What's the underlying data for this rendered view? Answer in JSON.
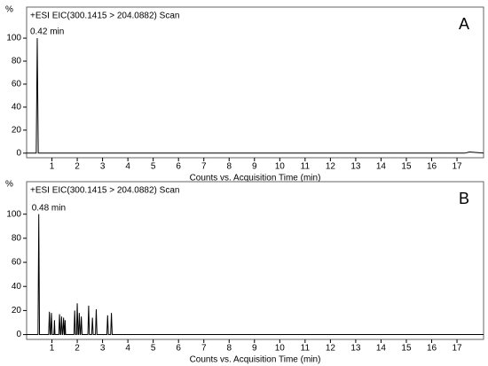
{
  "chart_data": [
    {
      "type": "line",
      "y_label": "%",
      "title": "+ESI EIC(300.1415 > 204.0882) Scan",
      "annotation": "A",
      "peak_label": "0.42 min",
      "x_label": "Counts vs. Acquisition Time (min)",
      "color": "#000000",
      "x": [
        0,
        0.38,
        0.42,
        0.46,
        17.3,
        17.5,
        18.05
      ],
      "values": [
        0,
        0,
        100,
        0,
        0,
        1,
        0
      ],
      "xlim": [
        0,
        18.05
      ],
      "ylim": [
        -4,
        127
      ],
      "xticks": [
        1,
        2,
        3,
        4,
        5,
        6,
        7,
        8,
        9,
        10,
        11,
        12,
        13,
        14,
        15,
        16,
        17
      ],
      "yticks": [
        0,
        20,
        40,
        60,
        80,
        100
      ]
    },
    {
      "type": "line",
      "y_label": "%",
      "title": "+ESI EIC(300.1415 > 204.0882) Scan",
      "annotation": "B",
      "peak_label": "0.48 min",
      "x_label": "Counts vs. Acquisition Time (min)",
      "color": "#000000",
      "x": [
        0,
        0.45,
        0.48,
        0.51,
        0.87,
        0.9,
        0.93,
        0.95,
        0.98,
        1.01,
        1.08,
        1.1,
        1.12,
        1.27,
        1.3,
        1.33,
        1.35,
        1.38,
        1.41,
        1.43,
        1.46,
        1.49,
        1.5,
        1.52,
        1.54,
        1.87,
        1.9,
        1.93,
        1.97,
        2.0,
        2.03,
        2.05,
        2.08,
        2.11,
        2.13,
        2.16,
        2.19,
        2.42,
        2.45,
        2.48,
        2.57,
        2.6,
        2.63,
        2.72,
        2.75,
        2.78,
        3.17,
        3.2,
        3.23,
        3.32,
        3.35,
        3.38,
        18.05
      ],
      "values": [
        0,
        0,
        100,
        0,
        0,
        19,
        0,
        0,
        18,
        0,
        0,
        12,
        0,
        0,
        17,
        0,
        0,
        15,
        0,
        0,
        14,
        0,
        0,
        12,
        0,
        0,
        20,
        0,
        0,
        26,
        0,
        0,
        18,
        0,
        0,
        15,
        0,
        0,
        24,
        0,
        0,
        14,
        0,
        0,
        21,
        0,
        0,
        16,
        0,
        0,
        18,
        0,
        0
      ],
      "xlim": [
        0,
        18.05
      ],
      "ylim": [
        -4,
        127
      ],
      "xticks": [
        1,
        2,
        3,
        4,
        5,
        6,
        7,
        8,
        9,
        10,
        11,
        12,
        13,
        14,
        15,
        16,
        17
      ],
      "yticks": [
        0,
        20,
        40,
        60,
        80,
        100
      ]
    }
  ]
}
